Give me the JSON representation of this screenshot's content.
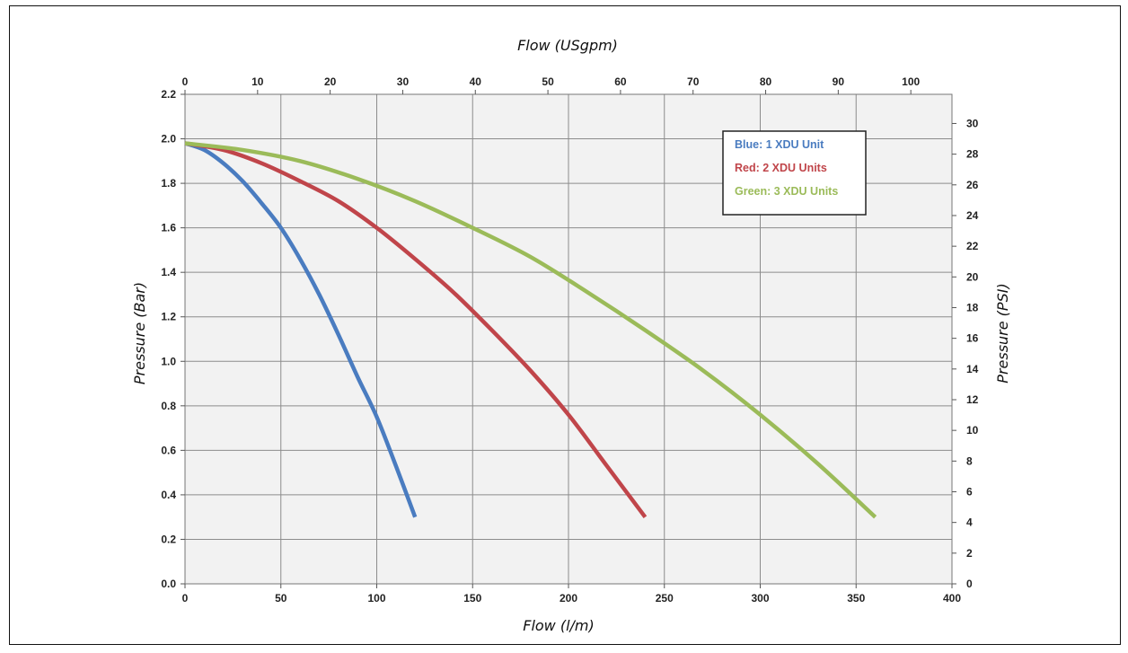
{
  "chart_data": {
    "type": "line",
    "x_bottom": {
      "label": "Flow (l/m)",
      "range": [
        0,
        400
      ],
      "ticks": [
        0,
        50,
        100,
        150,
        200,
        250,
        300,
        350,
        400
      ]
    },
    "x_top": {
      "label": "Flow (USgpm)",
      "range": [
        0,
        105.67
      ],
      "ticks": [
        0,
        10,
        20,
        30,
        40,
        50,
        60,
        70,
        80,
        90,
        100
      ]
    },
    "y_left": {
      "label": "Pressure (Bar)",
      "range": [
        0,
        2.2
      ],
      "ticks": [
        "0.0",
        "0.2",
        "0.4",
        "0.6",
        "0.8",
        "1.0",
        "1.2",
        "1.4",
        "1.6",
        "1.8",
        "2.0",
        "2.2"
      ]
    },
    "y_right": {
      "label": "Pressure (PSI)",
      "range": [
        0,
        31.9
      ],
      "ticks": [
        0,
        2,
        4,
        6,
        8,
        10,
        12,
        14,
        16,
        18,
        20,
        22,
        24,
        26,
        28,
        30
      ]
    },
    "grid": true,
    "legend_position": "top-right",
    "series": [
      {
        "name": "Blue: 1 XDU Unit",
        "color": "#4a7cc0",
        "points": [
          [
            0,
            1.98
          ],
          [
            10,
            1.95
          ],
          [
            20,
            1.89
          ],
          [
            30,
            1.81
          ],
          [
            40,
            1.71
          ],
          [
            50,
            1.6
          ],
          [
            60,
            1.46
          ],
          [
            70,
            1.3
          ],
          [
            80,
            1.12
          ],
          [
            90,
            0.93
          ],
          [
            100,
            0.75
          ],
          [
            110,
            0.53
          ],
          [
            120,
            0.3
          ]
        ]
      },
      {
        "name": "Red: 2 XDU Units",
        "color": "#c0454a",
        "points": [
          [
            0,
            1.98
          ],
          [
            20,
            1.95
          ],
          [
            40,
            1.89
          ],
          [
            60,
            1.81
          ],
          [
            80,
            1.72
          ],
          [
            100,
            1.6
          ],
          [
            120,
            1.46
          ],
          [
            140,
            1.31
          ],
          [
            160,
            1.14
          ],
          [
            180,
            0.96
          ],
          [
            200,
            0.76
          ],
          [
            220,
            0.53
          ],
          [
            240,
            0.3
          ]
        ]
      },
      {
        "name": "Green: 3 XDU  Units",
        "color": "#9bbb59",
        "points": [
          [
            0,
            1.98
          ],
          [
            30,
            1.95
          ],
          [
            60,
            1.9
          ],
          [
            90,
            1.82
          ],
          [
            120,
            1.72
          ],
          [
            150,
            1.6
          ],
          [
            180,
            1.47
          ],
          [
            210,
            1.31
          ],
          [
            240,
            1.14
          ],
          [
            270,
            0.96
          ],
          [
            300,
            0.76
          ],
          [
            330,
            0.54
          ],
          [
            360,
            0.3
          ]
        ]
      }
    ]
  }
}
